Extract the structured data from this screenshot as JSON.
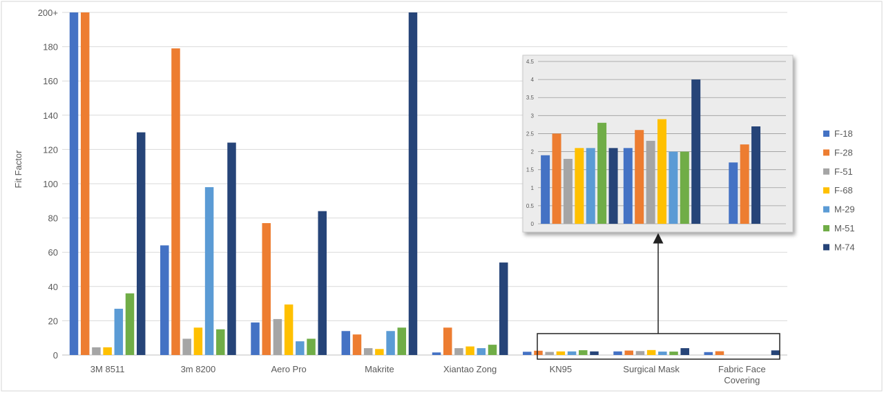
{
  "chart_data": [
    {
      "type": "bar",
      "ylabel": "Fit Factor",
      "y_ticks": [
        "0",
        "20",
        "40",
        "60",
        "80",
        "100",
        "120",
        "140",
        "160",
        "180",
        "200+"
      ],
      "ylim": [
        0,
        200
      ],
      "grid": true,
      "legend_position": "right",
      "categories": [
        "3M 8511",
        "3m 8200",
        "Aero Pro",
        "Makrite",
        "Xiantao Zong",
        "KN95",
        "Surgical Mask",
        "Fabric Face Covering"
      ],
      "category_lines": [
        [
          "3M 8511"
        ],
        [
          "3m 8200"
        ],
        [
          "Aero Pro"
        ],
        [
          "Makrite"
        ],
        [
          "Xiantao Zong"
        ],
        [
          "KN95"
        ],
        [
          "Surgical Mask"
        ],
        [
          "Fabric Face",
          "Covering"
        ]
      ],
      "series": [
        {
          "name": "F-18",
          "color": "#4472C4",
          "values": [
            200,
            64,
            19,
            14,
            1.5,
            1.9,
            2.1,
            1.7
          ]
        },
        {
          "name": "F-28",
          "color": "#ED7D31",
          "values": [
            200,
            179,
            77,
            12,
            16,
            2.5,
            2.6,
            2.2
          ]
        },
        {
          "name": "F-51",
          "color": "#A5A5A5",
          "values": [
            4.5,
            9.5,
            21,
            4,
            4,
            1.8,
            2.3,
            null
          ]
        },
        {
          "name": "F-68",
          "color": "#FFC000",
          "values": [
            4.5,
            16,
            29.5,
            3.5,
            5,
            2.1,
            2.9,
            null
          ]
        },
        {
          "name": "M-29",
          "color": "#5B9BD5",
          "values": [
            27,
            98,
            8,
            14,
            4,
            2.1,
            2.0,
            null
          ]
        },
        {
          "name": "M-51",
          "color": "#70AD47",
          "values": [
            36,
            15,
            9.5,
            16,
            6,
            2.8,
            2.0,
            null
          ]
        },
        {
          "name": "M-74",
          "color": "#264478",
          "values": [
            130,
            124,
            84,
            200,
            54,
            2.1,
            4.0,
            2.7
          ]
        }
      ]
    },
    {
      "type": "bar",
      "inset": true,
      "y_ticks": [
        "0",
        "0.5",
        "1",
        "1.5",
        "2",
        "2.5",
        "3",
        "3.5",
        "4",
        "4.5"
      ],
      "ylim": [
        0,
        4.5
      ],
      "grid": true,
      "categories": [
        "KN95",
        "Surgical Mask",
        "Fabric Face Covering"
      ],
      "series": [
        {
          "name": "F-18",
          "values": [
            1.9,
            2.1,
            1.7
          ]
        },
        {
          "name": "F-28",
          "values": [
            2.5,
            2.6,
            2.2
          ]
        },
        {
          "name": "F-51",
          "values": [
            1.8,
            2.3,
            null
          ]
        },
        {
          "name": "F-68",
          "values": [
            2.1,
            2.9,
            null
          ]
        },
        {
          "name": "M-29",
          "values": [
            2.1,
            2.0,
            null
          ]
        },
        {
          "name": "M-51",
          "values": [
            2.8,
            2.0,
            null
          ]
        },
        {
          "name": "M-74",
          "values": [
            2.1,
            4.0,
            2.7
          ]
        }
      ]
    }
  ]
}
